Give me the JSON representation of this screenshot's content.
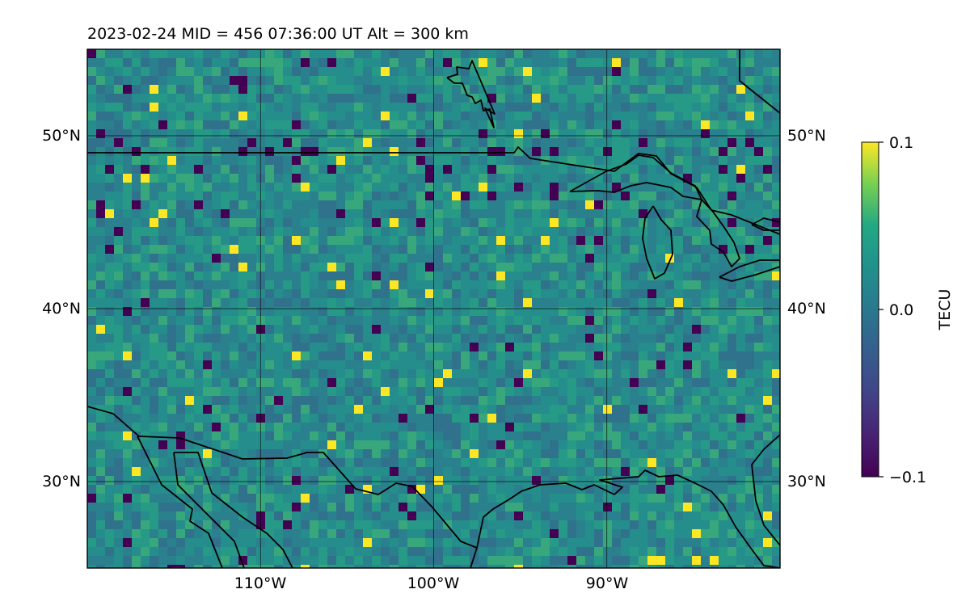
{
  "title": "2023-02-24  MID = 456    07:36:00  UT  Alt = 300 km",
  "map": {
    "lon_range": [
      -120,
      -80
    ],
    "lat_range": [
      25,
      55
    ],
    "gridlines": true,
    "projection": "equirectangular",
    "lat_ticks_left": [
      "50°N",
      "40°N",
      "30°N"
    ],
    "lat_ticks_right": [
      "50°N",
      "40°N",
      "30°N"
    ],
    "lon_ticks": [
      "110°W",
      "100°W",
      "90°W"
    ],
    "grid_lats": [
      50,
      40,
      30
    ],
    "grid_lons": [
      -110,
      -100,
      -90
    ]
  },
  "colorbar": {
    "label": "TECU",
    "colormap": "viridis",
    "min": -0.1,
    "max": 0.1,
    "ticks": [
      "0.1",
      "0.0",
      "−0.1"
    ],
    "tick_values": [
      0.1,
      0.0,
      -0.1
    ]
  },
  "colors": {
    "field_base": "#2c8c8c",
    "low": "#440154",
    "high": "#fde725",
    "coastline": "#000000"
  }
}
